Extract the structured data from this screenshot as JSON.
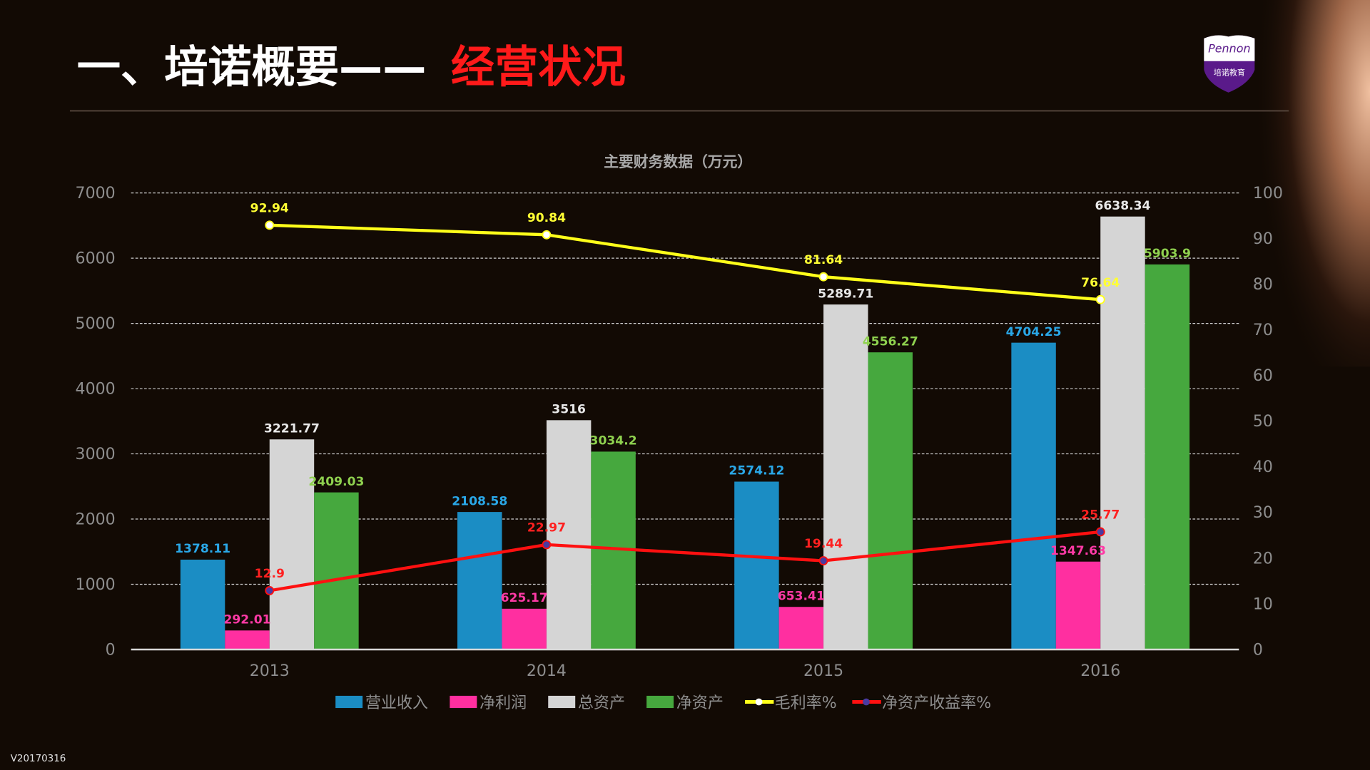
{
  "slide": {
    "title_prefix": "一、培诺概要——",
    "title_highlight": "经营状况",
    "version": "V20170316",
    "logo": {
      "brand": "Pennon",
      "subtitle": "培诺教育"
    },
    "colors": {
      "background": "#120a04",
      "title": "#ffffff",
      "highlight": "#ff1a1a",
      "logo": "#5a1a8a"
    }
  },
  "chart_data": {
    "type": "bar",
    "title": "主要财务数据（万元）",
    "categories": [
      "2013",
      "2014",
      "2015",
      "2016"
    ],
    "y_left": {
      "ticks": [
        "0",
        "1000",
        "2000",
        "3000",
        "4000",
        "5000",
        "6000",
        "7000"
      ],
      "range": [
        0,
        7000
      ]
    },
    "y_right": {
      "ticks": [
        "0",
        "10",
        "20",
        "30",
        "40",
        "50",
        "60",
        "70",
        "80",
        "90",
        "100"
      ],
      "range": [
        0,
        100
      ]
    },
    "grid": true,
    "legend_position": "bottom",
    "series": [
      {
        "name": "营业收入",
        "kind": "bar",
        "axis": "left",
        "color": "#1b8dc4",
        "label_color": "#2aa8e8",
        "values": [
          1378.11,
          2108.58,
          2574.12,
          4704.25
        ],
        "labels": [
          "1378.11",
          "2108.58",
          "2574.12",
          "4704.25"
        ]
      },
      {
        "name": "净利润",
        "kind": "bar",
        "axis": "left",
        "color": "#ff2fa0",
        "label_color": "#ff3aa6",
        "values": [
          292.01,
          625.17,
          653.41,
          1347.63
        ],
        "labels": [
          "292.01",
          "625.17",
          "653.41",
          "1347.63"
        ]
      },
      {
        "name": "总资产",
        "kind": "bar",
        "axis": "left",
        "color": "#d5d5d5",
        "label_color": "#e8e8e8",
        "values": [
          3221.77,
          3516,
          5289.71,
          6638.34
        ],
        "labels": [
          "3221.77",
          "3516",
          "5289.71",
          "6638.34"
        ]
      },
      {
        "name": "净资产",
        "kind": "bar",
        "axis": "left",
        "color": "#46a83e",
        "label_color": "#8fd14f",
        "values": [
          2409.03,
          3034.2,
          4556.27,
          5903.9
        ],
        "labels": [
          "2409.03",
          "3034.2",
          "4556.27",
          "5903.9"
        ]
      },
      {
        "name": "毛利率%",
        "kind": "line",
        "axis": "right",
        "color": "#ffff1a",
        "label_color": "#ffff33",
        "values": [
          92.94,
          90.84,
          81.64,
          76.64
        ],
        "labels": [
          "92.94",
          "90.84",
          "81.64",
          "76.64"
        ]
      },
      {
        "name": "净资产收益率%",
        "kind": "line",
        "axis": "right",
        "color": "#ff1010",
        "label_color": "#ff2020",
        "values": [
          12.9,
          22.97,
          19.44,
          25.77
        ],
        "labels": [
          "12.9",
          "22.97",
          "19.44",
          "25.77"
        ]
      }
    ]
  }
}
